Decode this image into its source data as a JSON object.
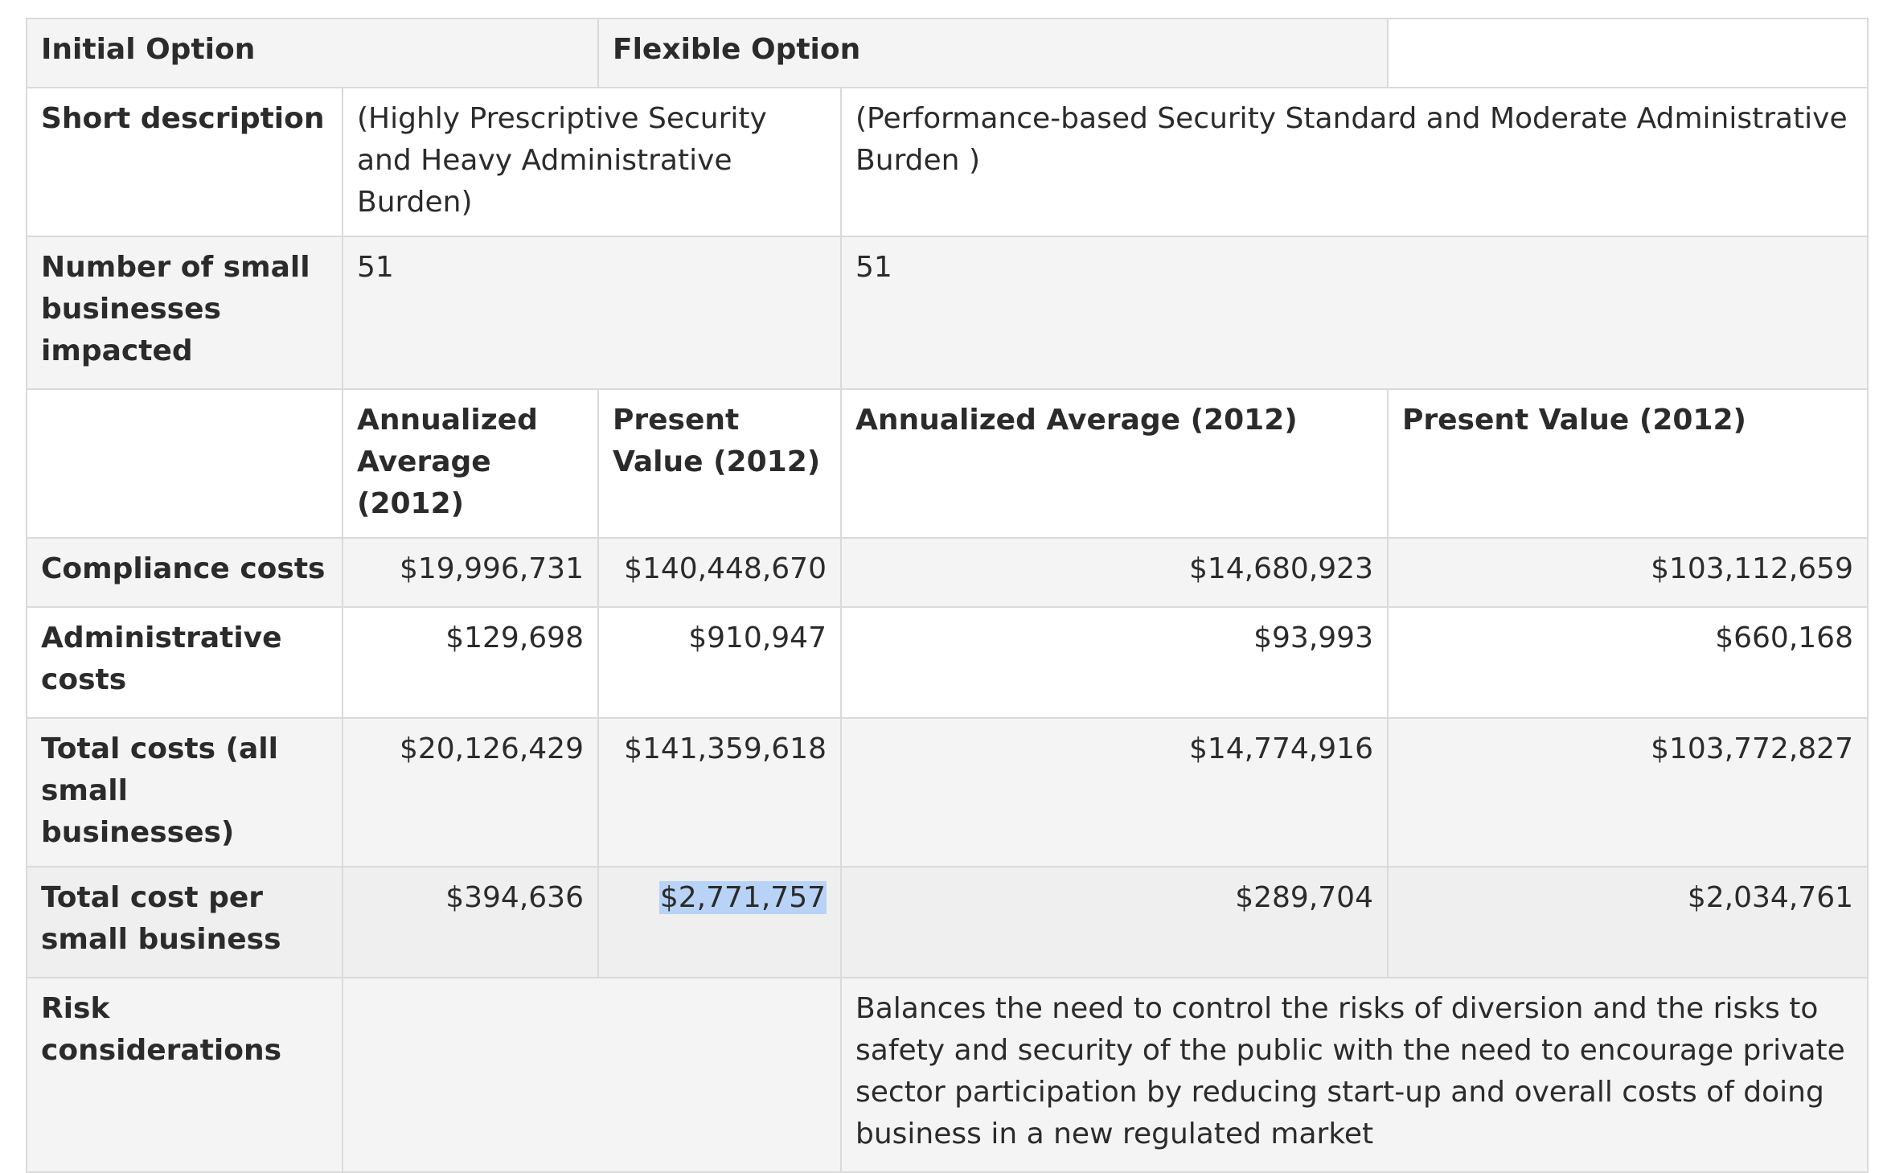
{
  "header": {
    "initial_option": "Initial Option",
    "flexible_option": "Flexible Option",
    "empty": ""
  },
  "short_description": {
    "label": "Short description",
    "initial": "(Highly Prescriptive Security and Heavy Administrative Burden)",
    "flexible": "(Performance-based Security Standard and Moderate Administrative Burden )"
  },
  "businesses_impacted": {
    "label": "Number of small businesses impacted",
    "initial": "51",
    "flexible": "51"
  },
  "subheader": {
    "initial_annualized": "Annualized Average (2012)",
    "initial_present": "Present Value (2012)",
    "flexible_annualized": "Annualized Average (2012)",
    "flexible_present": "Present Value (2012)"
  },
  "rows": [
    {
      "label": "Compliance costs",
      "initial_annualized": "$19,996,731",
      "initial_present": "$140,448,670",
      "flexible_annualized": "$14,680,923",
      "flexible_present": "$103,112,659"
    },
    {
      "label": "Administrative costs",
      "initial_annualized": "$129,698",
      "initial_present": "$910,947",
      "flexible_annualized": "$93,993",
      "flexible_present": "$660,168"
    },
    {
      "label": "Total costs (all small businesses)",
      "initial_annualized": "$20,126,429",
      "initial_present": "$141,359,618",
      "flexible_annualized": "$14,774,916",
      "flexible_present": "$103,772,827"
    },
    {
      "label": "Total cost per small business",
      "initial_annualized": "$394,636",
      "initial_present": "$2,771,757",
      "flexible_annualized": "$289,704",
      "flexible_present": "$2,034,761"
    }
  ],
  "risk": {
    "label": "Risk considerations",
    "initial": "",
    "flexible": "Balances the need to control the risks of diversion and the risks to safety and security of the public with the need to encourage private sector participation by reducing start-up and overall costs of doing business in a new regulated market"
  },
  "colors": {
    "border": "#dadada",
    "row_shaded": "#f4f4f4",
    "row_hover": "#efefef",
    "selection": "#b8d3f5"
  }
}
